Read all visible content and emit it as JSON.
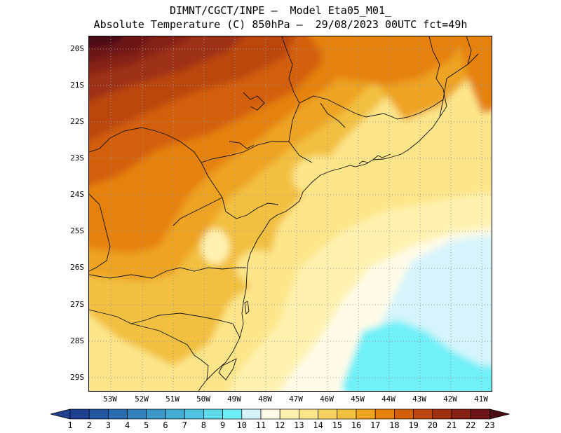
{
  "title_line1": "DIMNT/CGCT/INPE –  Model Eta05_M01_",
  "title_line2": "Absolute Temperature (C) 850hPa –  29/08/2023 00UTC fct=49h",
  "lat_labels": [
    "20S",
    "21S",
    "22S",
    "23S",
    "24S",
    "25S",
    "26S",
    "27S",
    "28S",
    "29S"
  ],
  "lon_labels": [
    "53W",
    "52W",
    "51W",
    "50W",
    "49W",
    "48W",
    "47W",
    "46W",
    "45W",
    "44W",
    "43W",
    "42W",
    "41W"
  ],
  "colorbar": {
    "labels": [
      "1",
      "2",
      "3",
      "4",
      "5",
      "6",
      "7",
      "8",
      "9",
      "10",
      "11",
      "12",
      "13",
      "14",
      "15",
      "16",
      "17",
      "18",
      "19",
      "20",
      "21",
      "22",
      "23"
    ],
    "colors": [
      "#1f3f8f",
      "#24559f",
      "#2b6bb0",
      "#3281bd",
      "#3b98c8",
      "#44add4",
      "#4fc3e0",
      "#5cd8ea",
      "#6ff0f7",
      "#d6f4fb",
      "#fffbe8",
      "#fff2b0",
      "#fde68a",
      "#f7d363",
      "#f2c040",
      "#eea321",
      "#e5820d",
      "#d35f0b",
      "#bb460f",
      "#9e3012",
      "#852015",
      "#6d1517",
      "#4a0e12"
    ]
  }
}
